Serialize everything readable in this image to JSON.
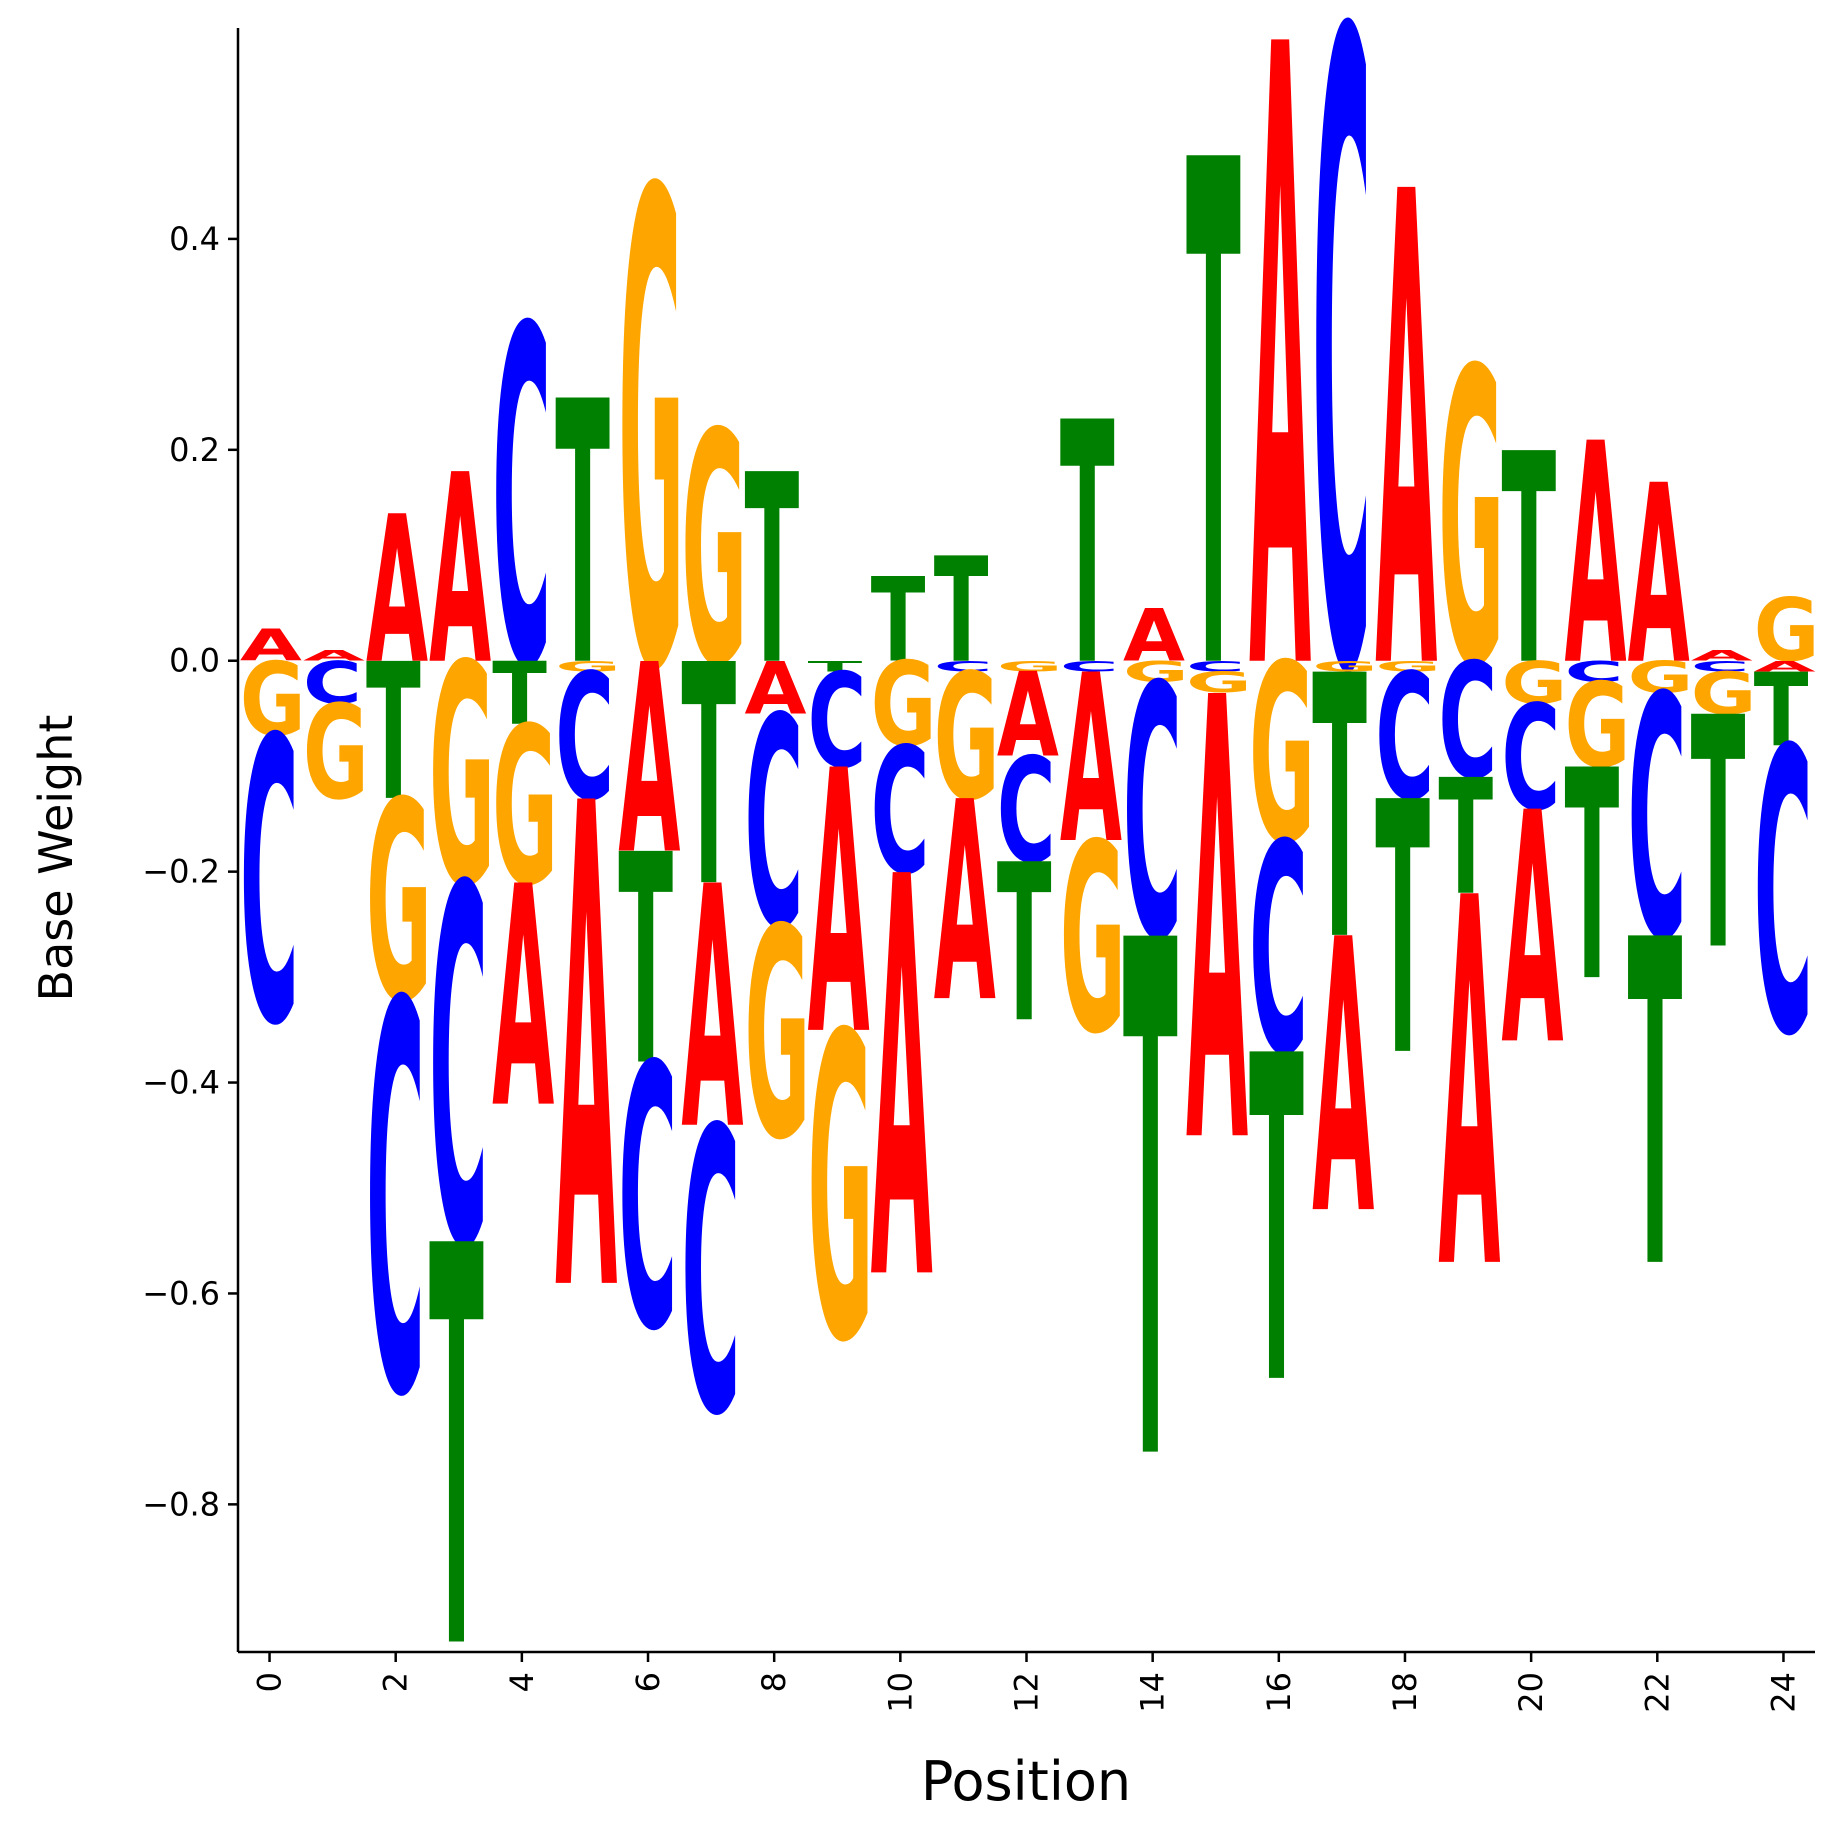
{
  "chart_data": {
    "type": "sequence-logo",
    "xlabel": "Position",
    "ylabel": "Base Weight",
    "xlim": [
      -0.5,
      24.5
    ],
    "ylim": [
      -0.94,
      0.6
    ],
    "xticks": [
      0,
      2,
      4,
      6,
      8,
      10,
      12,
      14,
      16,
      18,
      20,
      22,
      24
    ],
    "yticks": [
      -0.8,
      -0.6,
      -0.4,
      -0.2,
      0.0,
      0.2,
      0.4
    ],
    "ytick_labels": [
      "−0.8",
      "−0.6",
      "−0.4",
      "−0.2",
      "0.0",
      "0.2",
      "0.4"
    ],
    "grid": false,
    "base_colors": {
      "A": "#ff0000",
      "C": "#0000ff",
      "G": "#ffa500",
      "T": "#008000"
    },
    "positions": [
      {
        "pos": 0,
        "A": 0.03,
        "C": -0.27,
        "G": -0.07,
        "T": 0.0
      },
      {
        "pos": 1,
        "A": 0.01,
        "C": -0.04,
        "G": -0.09,
        "T": 0.0
      },
      {
        "pos": 2,
        "A": 0.14,
        "C": -0.37,
        "G": -0.19,
        "T": -0.13
      },
      {
        "pos": 3,
        "A": 0.18,
        "C": -0.34,
        "G": -0.21,
        "T": -0.38
      },
      {
        "pos": 4,
        "A": -0.21,
        "C": 0.32,
        "G": -0.15,
        "T": -0.06
      },
      {
        "pos": 5,
        "A": -0.46,
        "C": -0.12,
        "G": -0.01,
        "T": 0.25
      },
      {
        "pos": 6,
        "A": -0.18,
        "C": -0.25,
        "G": 0.45,
        "T": -0.2
      },
      {
        "pos": 7,
        "A": -0.23,
        "C": -0.27,
        "G": 0.22,
        "T": -0.21
      },
      {
        "pos": 8,
        "A": -0.05,
        "C": -0.2,
        "G": -0.2,
        "T": 0.18
      },
      {
        "pos": 9,
        "A": -0.25,
        "C": -0.09,
        "G": -0.29,
        "T": -0.01
      },
      {
        "pos": 10,
        "A": -0.38,
        "C": -0.12,
        "G": -0.08,
        "T": 0.08
      },
      {
        "pos": 11,
        "A": -0.19,
        "C": -0.01,
        "G": -0.12,
        "T": 0.1
      },
      {
        "pos": 12,
        "A": -0.08,
        "C": -0.1,
        "G": -0.01,
        "T": -0.15
      },
      {
        "pos": 13,
        "A": -0.16,
        "C": -0.01,
        "G": -0.18,
        "T": 0.23
      },
      {
        "pos": 14,
        "A": 0.05,
        "C": -0.24,
        "G": -0.02,
        "T": -0.49
      },
      {
        "pos": 15,
        "A": -0.42,
        "C": -0.01,
        "G": -0.02,
        "T": 0.48
      },
      {
        "pos": 16,
        "A": 0.59,
        "C": -0.2,
        "G": -0.17,
        "T": -0.31
      },
      {
        "pos": 17,
        "A": -0.26,
        "C": 0.6,
        "G": -0.01,
        "T": -0.25
      },
      {
        "pos": 18,
        "A": 0.45,
        "C": -0.12,
        "G": -0.01,
        "T": -0.24
      },
      {
        "pos": 19,
        "A": -0.35,
        "C": -0.11,
        "G": 0.28,
        "T": -0.11
      },
      {
        "pos": 20,
        "A": -0.22,
        "C": -0.1,
        "G": -0.04,
        "T": 0.2
      },
      {
        "pos": 21,
        "A": 0.21,
        "C": -0.02,
        "G": -0.08,
        "T": -0.2
      },
      {
        "pos": 22,
        "A": 0.17,
        "C": -0.23,
        "G": -0.03,
        "T": -0.31
      },
      {
        "pos": 23,
        "A": 0.01,
        "C": -0.01,
        "G": -0.04,
        "T": -0.22
      },
      {
        "pos": 24,
        "A": -0.01,
        "C": -0.27,
        "G": 0.06,
        "T": -0.07
      }
    ]
  }
}
